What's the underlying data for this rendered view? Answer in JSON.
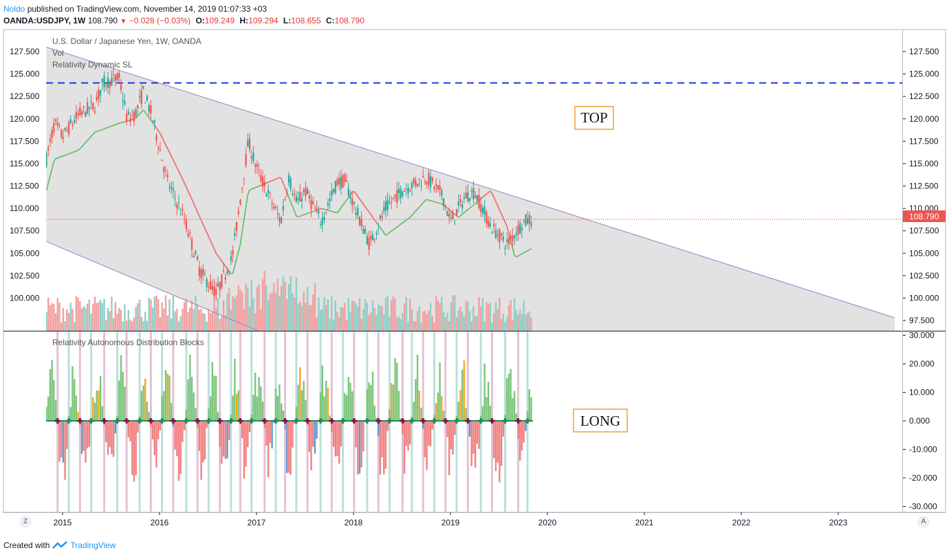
{
  "header": {
    "author": "Noldo",
    "published": "published on TradingView.com, November 14, 2019 01:07:33 +03",
    "symbol": "OANDA:USDJPY, 1W",
    "last": "108.790",
    "change": "−0.028 (−0.03%)",
    "o_label": "O:",
    "o_value": "109.249",
    "h_label": "H:",
    "h_value": "109.294",
    "l_label": "L:",
    "l_value": "108.655",
    "c_label": "C:",
    "c_value": "108.790"
  },
  "legend": {
    "title": "U.S. Dollar / Japanese Yen, 1W, OANDA",
    "vol": "Vol",
    "indicator": "Relativity Dynamic SL",
    "lower_indicator": "Relativity Autonomous Distribution Blocks"
  },
  "annotations": {
    "top": "TOP",
    "long": "LONG"
  },
  "price_badge": "108.790",
  "buttons": {
    "zoom": "Z",
    "auto": "A"
  },
  "footer": {
    "created": "Created with",
    "brand": "TradingView"
  },
  "colors": {
    "up": "#26a69a",
    "down": "#ef5350",
    "up_soft": "#7cc47a",
    "down_soft": "#f08080",
    "orange": "#f5a623",
    "blue": "#5b9bd5",
    "channel": "#9b7fc4",
    "dashed": "#1a35e8",
    "price_line": "#e53935",
    "sl_green": "#6abf69",
    "sl_red": "#f07070"
  },
  "chart_data": [
    {
      "type": "candlestick",
      "title": "U.S. Dollar / Japanese Yen, 1W, OANDA",
      "x_ticks": [
        "2015",
        "2016",
        "2017",
        "2018",
        "2019",
        "2020",
        "2021",
        "2022",
        "2023"
      ],
      "y_ticks": [
        "97.500",
        "100.000",
        "102.500",
        "105.000",
        "107.500",
        "110.000",
        "112.500",
        "115.000",
        "117.500",
        "120.000",
        "122.500",
        "125.000",
        "127.500"
      ],
      "y_range": [
        97.5,
        127.5
      ],
      "last_price": 108.79,
      "anchors_date_price": [
        [
          "2014-11",
          115.5
        ],
        [
          "2014-12",
          119.5
        ],
        [
          "2015-01",
          118.0
        ],
        [
          "2015-03",
          120.5
        ],
        [
          "2015-05",
          121.5
        ],
        [
          "2015-06",
          124.0
        ],
        [
          "2015-08",
          124.5
        ],
        [
          "2015-09",
          120.0
        ],
        [
          "2015-10",
          120.5
        ],
        [
          "2015-11",
          123.0
        ],
        [
          "2015-12",
          120.5
        ],
        [
          "2016-02",
          113.0
        ],
        [
          "2016-04",
          109.0
        ],
        [
          "2016-06",
          103.0
        ],
        [
          "2016-08",
          100.5
        ],
        [
          "2016-10",
          104.5
        ],
        [
          "2016-12",
          117.5
        ],
        [
          "2017-01",
          114.5
        ],
        [
          "2017-04",
          108.5
        ],
        [
          "2017-05",
          113.5
        ],
        [
          "2017-06",
          110.5
        ],
        [
          "2017-07",
          112.0
        ],
        [
          "2017-09",
          108.5
        ],
        [
          "2017-11",
          113.0
        ],
        [
          "2017-12",
          113.0
        ],
        [
          "2018-01",
          110.5
        ],
        [
          "2018-03",
          106.0
        ],
        [
          "2018-05",
          110.0
        ],
        [
          "2018-07",
          112.0
        ],
        [
          "2018-10",
          113.5
        ],
        [
          "2018-12",
          111.5
        ],
        [
          "2019-01",
          108.5
        ],
        [
          "2019-03",
          111.5
        ],
        [
          "2019-04",
          111.8
        ],
        [
          "2019-06",
          108.0
        ],
        [
          "2019-08",
          106.0
        ],
        [
          "2019-10",
          108.5
        ],
        [
          "2019-11",
          108.79
        ]
      ],
      "dynamic_sl": [
        [
          "2014-11",
          112.0
        ],
        [
          "2014-12",
          115.5
        ],
        [
          "2015-03",
          116.5
        ],
        [
          "2015-05",
          118.5
        ],
        [
          "2015-08",
          119.5
        ],
        [
          "2015-10",
          120.0
        ],
        [
          "2015-11",
          121.0
        ],
        [
          "2016-01",
          118.5
        ],
        [
          "2016-04",
          113.0
        ],
        [
          "2016-06",
          109.0
        ],
        [
          "2016-08",
          105.0
        ],
        [
          "2016-10",
          102.5
        ],
        [
          "2016-11",
          106.0
        ],
        [
          "2016-12",
          112.0
        ],
        [
          "2017-04",
          113.5
        ],
        [
          "2017-06",
          109.0
        ],
        [
          "2017-09",
          110.0
        ],
        [
          "2017-11",
          109.5
        ],
        [
          "2018-01",
          112.0
        ],
        [
          "2018-03",
          109.5
        ],
        [
          "2018-05",
          107.0
        ],
        [
          "2018-08",
          109.0
        ],
        [
          "2018-10",
          111.0
        ],
        [
          "2018-12",
          110.5
        ],
        [
          "2019-02",
          109.0
        ],
        [
          "2019-04",
          110.5
        ],
        [
          "2019-06",
          112.0
        ],
        [
          "2019-08",
          108.0
        ],
        [
          "2019-09",
          104.5
        ],
        [
          "2019-11",
          105.5
        ]
      ],
      "resistance_line": [
        [
          "2014-11",
          128.0
        ],
        [
          "2023-08",
          97.8
        ]
      ],
      "support_line": [
        [
          "2014-11",
          106.3
        ],
        [
          "2017-06",
          94.5
        ]
      ],
      "dashed_level": 124.0
    },
    {
      "type": "bar",
      "title": "Relativity Autonomous Distribution Blocks",
      "y_ticks": [
        "30.000",
        "20.000",
        "10.000",
        "0.000",
        "-10.000",
        "-20.000",
        "-30.000"
      ],
      "y_range": [
        -30,
        30
      ]
    }
  ]
}
